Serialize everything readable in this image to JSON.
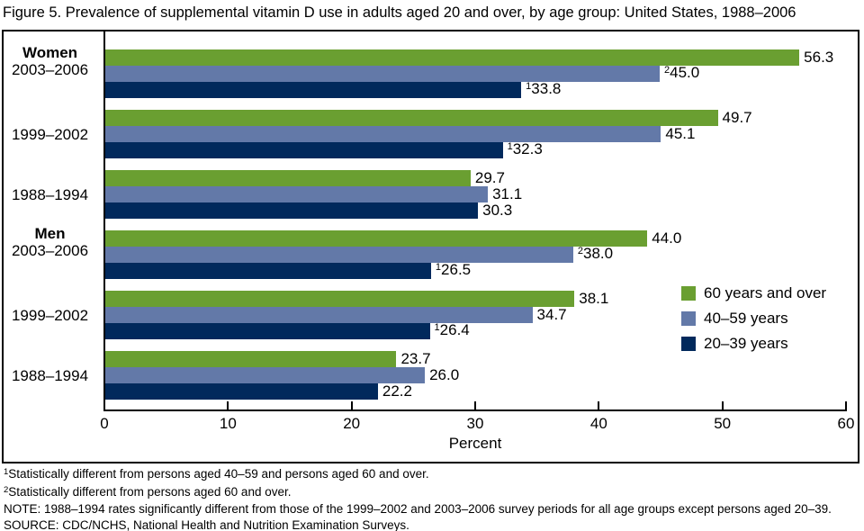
{
  "title": "Figure 5. Prevalence of supplemental vitamin D use in adults aged 20 and over, by age group: United States, 1988–2006",
  "chart_data": {
    "type": "bar",
    "orientation": "horizontal",
    "xlabel": "Percent",
    "xlim": [
      0,
      60
    ],
    "xticks": [
      0,
      10,
      20,
      30,
      40,
      50,
      60
    ],
    "grid": false,
    "legend_position": "right-middle",
    "series_legend": [
      {
        "name": "60 years and over",
        "color": "#6A9F31"
      },
      {
        "name": "40–59 years",
        "color": "#6379A8"
      },
      {
        "name": "20–39 years",
        "color": "#01295C"
      }
    ],
    "groups": [
      {
        "section": "Women",
        "period": "2003–2006",
        "bars": [
          {
            "series": "60 years and over",
            "value": 56.3,
            "display": "56.3",
            "sup": ""
          },
          {
            "series": "40–59 years",
            "value": 45.0,
            "display": "45.0",
            "sup": "2"
          },
          {
            "series": "20–39 years",
            "value": 33.8,
            "display": "33.8",
            "sup": "1"
          }
        ]
      },
      {
        "section": "",
        "period": "1999–2002",
        "bars": [
          {
            "series": "60 years and over",
            "value": 49.7,
            "display": "49.7",
            "sup": ""
          },
          {
            "series": "40–59 years",
            "value": 45.1,
            "display": "45.1",
            "sup": ""
          },
          {
            "series": "20–39 years",
            "value": 32.3,
            "display": "32.3",
            "sup": "1"
          }
        ]
      },
      {
        "section": "",
        "period": "1988–1994",
        "bars": [
          {
            "series": "60 years and over",
            "value": 29.7,
            "display": "29.7",
            "sup": ""
          },
          {
            "series": "40–59 years",
            "value": 31.1,
            "display": "31.1",
            "sup": ""
          },
          {
            "series": "20–39 years",
            "value": 30.3,
            "display": "30.3",
            "sup": ""
          }
        ]
      },
      {
        "section": "Men",
        "period": "2003–2006",
        "bars": [
          {
            "series": "60 years and over",
            "value": 44.0,
            "display": "44.0",
            "sup": ""
          },
          {
            "series": "40–59 years",
            "value": 38.0,
            "display": "38.0",
            "sup": "2"
          },
          {
            "series": "20–39 years",
            "value": 26.5,
            "display": "26.5",
            "sup": "1"
          }
        ]
      },
      {
        "section": "",
        "period": "1999–2002",
        "bars": [
          {
            "series": "60 years and over",
            "value": 38.1,
            "display": "38.1",
            "sup": ""
          },
          {
            "series": "40–59 years",
            "value": 34.7,
            "display": "34.7",
            "sup": ""
          },
          {
            "series": "20–39 years",
            "value": 26.4,
            "display": "26.4",
            "sup": "1"
          }
        ]
      },
      {
        "section": "",
        "period": "1988–1994",
        "bars": [
          {
            "series": "60 years and over",
            "value": 23.7,
            "display": "23.7",
            "sup": ""
          },
          {
            "series": "40–59 years",
            "value": 26.0,
            "display": "26.0",
            "sup": ""
          },
          {
            "series": "20–39 years",
            "value": 22.2,
            "display": "22.2",
            "sup": ""
          }
        ]
      }
    ]
  },
  "footnotes": [
    {
      "sup": "1",
      "text": "Statistically different from persons aged 40–59 and persons aged 60 and over."
    },
    {
      "sup": "2",
      "text": "Statistically different from persons aged 60 and over."
    },
    {
      "sup": "",
      "text": "NOTE: 1988–1994 rates significantly different from those of the 1999–2002 and 2003–2006 survey periods for all age groups except persons aged 20–39."
    },
    {
      "sup": "",
      "text": "SOURCE: CDC/NCHS, National Health and Nutrition Examination Surveys."
    }
  ]
}
